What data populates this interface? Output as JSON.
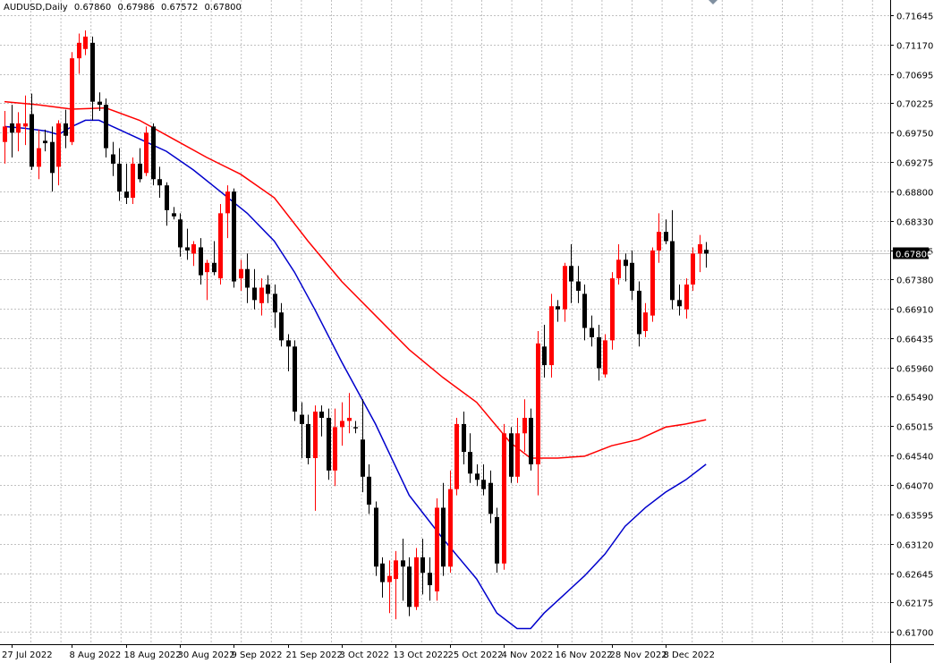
{
  "header": {
    "symbol": "AUDUSD,Daily",
    "open": "0.67860",
    "high": "0.67986",
    "low": "0.67572",
    "close": "0.67800"
  },
  "price_label": "0.67800",
  "colors": {
    "bull": "#ff0000",
    "bear": "#000000",
    "ma_red": "#ff0000",
    "ma_blue": "#0000cc",
    "grid": "#c0c0c0",
    "price_line": "#c8c8c8"
  },
  "chart_data": {
    "type": "candlestick",
    "title": "",
    "xlabel": "",
    "ylabel": "",
    "ylim": [
      0.617,
      0.71645
    ],
    "grid": true,
    "y_ticks": [
      "0.71645",
      "0.71170",
      "0.70695",
      "0.70225",
      "0.69750",
      "0.69275",
      "0.68800",
      "0.68330",
      "0.67855",
      "0.67380",
      "0.66910",
      "0.66435",
      "0.65960",
      "0.65490",
      "0.65015",
      "0.64540",
      "0.64070",
      "0.63595",
      "0.63120",
      "0.62645",
      "0.62175",
      "0.61700"
    ],
    "x_ticks": [
      {
        "label": "27 Jul 2022",
        "index": 1
      },
      {
        "label": "8 Aug 2022",
        "index": 10
      },
      {
        "label": "18 Aug 2022",
        "index": 18
      },
      {
        "label": "30 Aug 2022",
        "index": 26
      },
      {
        "label": "9 Sep 2022",
        "index": 34
      },
      {
        "label": "21 Sep 2022",
        "index": 42
      },
      {
        "label": "3 Oct 2022",
        "index": 50
      },
      {
        "label": "13 Oct 2022",
        "index": 58
      },
      {
        "label": "25 Oct 2022",
        "index": 66
      },
      {
        "label": "4 Nov 2022",
        "index": 74
      },
      {
        "label": "16 Nov 2022",
        "index": 82
      },
      {
        "label": "28 Nov 2022",
        "index": 90
      },
      {
        "label": "8 Dec 2022",
        "index": 98
      }
    ],
    "candles": [
      {
        "o": 0.696,
        "h": 0.701,
        "l": 0.6925,
        "c": 0.6985
      },
      {
        "o": 0.699,
        "h": 0.702,
        "l": 0.6935,
        "c": 0.6975
      },
      {
        "o": 0.6975,
        "h": 0.7008,
        "l": 0.6945,
        "c": 0.699
      },
      {
        "o": 0.6985,
        "h": 0.7035,
        "l": 0.6955,
        "c": 0.699
      },
      {
        "o": 0.7005,
        "h": 0.7038,
        "l": 0.6915,
        "c": 0.692
      },
      {
        "o": 0.692,
        "h": 0.698,
        "l": 0.69,
        "c": 0.695
      },
      {
        "o": 0.6962,
        "h": 0.698,
        "l": 0.6945,
        "c": 0.6958
      },
      {
        "o": 0.696,
        "h": 0.6985,
        "l": 0.688,
        "c": 0.691
      },
      {
        "o": 0.692,
        "h": 0.6995,
        "l": 0.689,
        "c": 0.699
      },
      {
        "o": 0.699,
        "h": 0.7012,
        "l": 0.695,
        "c": 0.697
      },
      {
        "o": 0.696,
        "h": 0.7105,
        "l": 0.6955,
        "c": 0.7095
      },
      {
        "o": 0.7095,
        "h": 0.7135,
        "l": 0.707,
        "c": 0.712
      },
      {
        "o": 0.711,
        "h": 0.714,
        "l": 0.71,
        "c": 0.713
      },
      {
        "o": 0.712,
        "h": 0.713,
        "l": 0.6995,
        "c": 0.7025
      },
      {
        "o": 0.7025,
        "h": 0.704,
        "l": 0.701,
        "c": 0.702
      },
      {
        "o": 0.702,
        "h": 0.703,
        "l": 0.6935,
        "c": 0.695
      },
      {
        "o": 0.694,
        "h": 0.696,
        "l": 0.6905,
        "c": 0.6925
      },
      {
        "o": 0.6925,
        "h": 0.695,
        "l": 0.6865,
        "c": 0.688
      },
      {
        "o": 0.688,
        "h": 0.6925,
        "l": 0.686,
        "c": 0.687
      },
      {
        "o": 0.687,
        "h": 0.6935,
        "l": 0.686,
        "c": 0.6925
      },
      {
        "o": 0.6925,
        "h": 0.695,
        "l": 0.6895,
        "c": 0.69
      },
      {
        "o": 0.691,
        "h": 0.6985,
        "l": 0.6905,
        "c": 0.6975
      },
      {
        "o": 0.6985,
        "h": 0.699,
        "l": 0.689,
        "c": 0.69
      },
      {
        "o": 0.69,
        "h": 0.692,
        "l": 0.687,
        "c": 0.689
      },
      {
        "o": 0.689,
        "h": 0.6895,
        "l": 0.6825,
        "c": 0.685
      },
      {
        "o": 0.6845,
        "h": 0.6855,
        "l": 0.6835,
        "c": 0.684
      },
      {
        "o": 0.6835,
        "h": 0.6845,
        "l": 0.6775,
        "c": 0.679
      },
      {
        "o": 0.679,
        "h": 0.682,
        "l": 0.677,
        "c": 0.6785
      },
      {
        "o": 0.678,
        "h": 0.68,
        "l": 0.676,
        "c": 0.6795
      },
      {
        "o": 0.679,
        "h": 0.6805,
        "l": 0.673,
        "c": 0.6745
      },
      {
        "o": 0.675,
        "h": 0.677,
        "l": 0.6705,
        "c": 0.6765
      },
      {
        "o": 0.6765,
        "h": 0.68,
        "l": 0.6745,
        "c": 0.675
      },
      {
        "o": 0.674,
        "h": 0.686,
        "l": 0.673,
        "c": 0.6845
      },
      {
        "o": 0.6845,
        "h": 0.689,
        "l": 0.6805,
        "c": 0.688
      },
      {
        "o": 0.688,
        "h": 0.6885,
        "l": 0.6725,
        "c": 0.6735
      },
      {
        "o": 0.674,
        "h": 0.677,
        "l": 0.672,
        "c": 0.6755
      },
      {
        "o": 0.6755,
        "h": 0.678,
        "l": 0.67,
        "c": 0.6725
      },
      {
        "o": 0.6725,
        "h": 0.6755,
        "l": 0.669,
        "c": 0.6705
      },
      {
        "o": 0.67,
        "h": 0.674,
        "l": 0.668,
        "c": 0.6725
      },
      {
        "o": 0.673,
        "h": 0.6745,
        "l": 0.67,
        "c": 0.6715
      },
      {
        "o": 0.6715,
        "h": 0.673,
        "l": 0.666,
        "c": 0.6685
      },
      {
        "o": 0.6685,
        "h": 0.67,
        "l": 0.663,
        "c": 0.664
      },
      {
        "o": 0.664,
        "h": 0.665,
        "l": 0.659,
        "c": 0.663
      },
      {
        "o": 0.663,
        "h": 0.664,
        "l": 0.651,
        "c": 0.6525
      },
      {
        "o": 0.652,
        "h": 0.654,
        "l": 0.645,
        "c": 0.6505
      },
      {
        "o": 0.6505,
        "h": 0.652,
        "l": 0.644,
        "c": 0.645
      },
      {
        "o": 0.645,
        "h": 0.6535,
        "l": 0.6365,
        "c": 0.6525
      },
      {
        "o": 0.6525,
        "h": 0.6535,
        "l": 0.6485,
        "c": 0.6515
      },
      {
        "o": 0.6515,
        "h": 0.653,
        "l": 0.6415,
        "c": 0.643
      },
      {
        "o": 0.643,
        "h": 0.653,
        "l": 0.6405,
        "c": 0.65
      },
      {
        "o": 0.65,
        "h": 0.654,
        "l": 0.647,
        "c": 0.651
      },
      {
        "o": 0.651,
        "h": 0.6555,
        "l": 0.649,
        "c": 0.6515
      },
      {
        "o": 0.65,
        "h": 0.651,
        "l": 0.649,
        "c": 0.6498
      },
      {
        "o": 0.648,
        "h": 0.6545,
        "l": 0.6395,
        "c": 0.642
      },
      {
        "o": 0.642,
        "h": 0.644,
        "l": 0.636,
        "c": 0.6375
      },
      {
        "o": 0.637,
        "h": 0.638,
        "l": 0.626,
        "c": 0.6275
      },
      {
        "o": 0.628,
        "h": 0.629,
        "l": 0.6225,
        "c": 0.625
      },
      {
        "o": 0.625,
        "h": 0.6285,
        "l": 0.62,
        "c": 0.626
      },
      {
        "o": 0.6255,
        "h": 0.63,
        "l": 0.619,
        "c": 0.6285
      },
      {
        "o": 0.6285,
        "h": 0.632,
        "l": 0.622,
        "c": 0.6275
      },
      {
        "o": 0.6275,
        "h": 0.629,
        "l": 0.6195,
        "c": 0.621
      },
      {
        "o": 0.621,
        "h": 0.6305,
        "l": 0.6205,
        "c": 0.629
      },
      {
        "o": 0.629,
        "h": 0.632,
        "l": 0.623,
        "c": 0.6265
      },
      {
        "o": 0.6265,
        "h": 0.629,
        "l": 0.622,
        "c": 0.6245
      },
      {
        "o": 0.6235,
        "h": 0.6385,
        "l": 0.622,
        "c": 0.637
      },
      {
        "o": 0.637,
        "h": 0.641,
        "l": 0.626,
        "c": 0.6275
      },
      {
        "o": 0.6275,
        "h": 0.643,
        "l": 0.6265,
        "c": 0.64
      },
      {
        "o": 0.64,
        "h": 0.6515,
        "l": 0.639,
        "c": 0.6505
      },
      {
        "o": 0.6505,
        "h": 0.6525,
        "l": 0.644,
        "c": 0.646
      },
      {
        "o": 0.646,
        "h": 0.649,
        "l": 0.641,
        "c": 0.6425
      },
      {
        "o": 0.6425,
        "h": 0.644,
        "l": 0.6405,
        "c": 0.6415
      },
      {
        "o": 0.6415,
        "h": 0.644,
        "l": 0.639,
        "c": 0.64
      },
      {
        "o": 0.641,
        "h": 0.643,
        "l": 0.6345,
        "c": 0.636
      },
      {
        "o": 0.6355,
        "h": 0.637,
        "l": 0.6265,
        "c": 0.628
      },
      {
        "o": 0.628,
        "h": 0.6505,
        "l": 0.627,
        "c": 0.649
      },
      {
        "o": 0.649,
        "h": 0.65,
        "l": 0.641,
        "c": 0.642
      },
      {
        "o": 0.642,
        "h": 0.6515,
        "l": 0.641,
        "c": 0.649
      },
      {
        "o": 0.649,
        "h": 0.6545,
        "l": 0.646,
        "c": 0.6515
      },
      {
        "o": 0.6515,
        "h": 0.653,
        "l": 0.643,
        "c": 0.644
      },
      {
        "o": 0.644,
        "h": 0.6655,
        "l": 0.639,
        "c": 0.6635
      },
      {
        "o": 0.663,
        "h": 0.6665,
        "l": 0.658,
        "c": 0.66
      },
      {
        "o": 0.66,
        "h": 0.6715,
        "l": 0.658,
        "c": 0.6695
      },
      {
        "o": 0.6695,
        "h": 0.6705,
        "l": 0.667,
        "c": 0.669
      },
      {
        "o": 0.669,
        "h": 0.6765,
        "l": 0.667,
        "c": 0.676
      },
      {
        "o": 0.676,
        "h": 0.6795,
        "l": 0.67,
        "c": 0.6735
      },
      {
        "o": 0.6735,
        "h": 0.676,
        "l": 0.67,
        "c": 0.672
      },
      {
        "o": 0.6715,
        "h": 0.673,
        "l": 0.664,
        "c": 0.666
      },
      {
        "o": 0.666,
        "h": 0.668,
        "l": 0.663,
        "c": 0.6645
      },
      {
        "o": 0.6645,
        "h": 0.6665,
        "l": 0.6575,
        "c": 0.6595
      },
      {
        "o": 0.6585,
        "h": 0.665,
        "l": 0.658,
        "c": 0.664
      },
      {
        "o": 0.664,
        "h": 0.675,
        "l": 0.6625,
        "c": 0.674
      },
      {
        "o": 0.674,
        "h": 0.6795,
        "l": 0.673,
        "c": 0.677
      },
      {
        "o": 0.677,
        "h": 0.678,
        "l": 0.6735,
        "c": 0.676
      },
      {
        "o": 0.6765,
        "h": 0.6785,
        "l": 0.6705,
        "c": 0.672
      },
      {
        "o": 0.672,
        "h": 0.6735,
        "l": 0.663,
        "c": 0.665
      },
      {
        "o": 0.6655,
        "h": 0.67,
        "l": 0.6645,
        "c": 0.6685
      },
      {
        "o": 0.668,
        "h": 0.679,
        "l": 0.667,
        "c": 0.6785
      },
      {
        "o": 0.6785,
        "h": 0.6845,
        "l": 0.6765,
        "c": 0.6815
      },
      {
        "o": 0.6815,
        "h": 0.6835,
        "l": 0.6795,
        "c": 0.68
      },
      {
        "o": 0.68,
        "h": 0.685,
        "l": 0.669,
        "c": 0.6705
      },
      {
        "o": 0.6705,
        "h": 0.673,
        "l": 0.668,
        "c": 0.6695
      },
      {
        "o": 0.669,
        "h": 0.674,
        "l": 0.6675,
        "c": 0.673
      },
      {
        "o": 0.673,
        "h": 0.679,
        "l": 0.672,
        "c": 0.678
      },
      {
        "o": 0.678,
        "h": 0.681,
        "l": 0.675,
        "c": 0.6795
      },
      {
        "o": 0.6786,
        "h": 0.67986,
        "l": 0.67572,
        "c": 0.678
      }
    ],
    "series": [
      {
        "type": "line",
        "color": "#ff0000",
        "points": [
          [
            0,
            0.7025
          ],
          [
            5,
            0.702
          ],
          [
            10,
            0.7013
          ],
          [
            15,
            0.7015
          ],
          [
            20,
            0.6995
          ],
          [
            25,
            0.6965
          ],
          [
            30,
            0.6935
          ],
          [
            35,
            0.6908
          ],
          [
            40,
            0.687
          ],
          [
            45,
            0.68
          ],
          [
            50,
            0.6735
          ],
          [
            55,
            0.668
          ],
          [
            60,
            0.6625
          ],
          [
            65,
            0.658
          ],
          [
            70,
            0.654
          ],
          [
            75,
            0.6475
          ],
          [
            78,
            0.645
          ],
          [
            82,
            0.645
          ],
          [
            86,
            0.6453
          ],
          [
            90,
            0.647
          ],
          [
            94,
            0.648
          ],
          [
            98,
            0.65
          ],
          [
            101,
            0.6505
          ],
          [
            104,
            0.6512
          ]
        ]
      },
      {
        "type": "line",
        "color": "#0000cc",
        "points": [
          [
            0,
            0.6985
          ],
          [
            3,
            0.6982
          ],
          [
            6,
            0.6978
          ],
          [
            8,
            0.6972
          ],
          [
            10,
            0.6985
          ],
          [
            12,
            0.6995
          ],
          [
            14,
            0.6995
          ],
          [
            17,
            0.698
          ],
          [
            20,
            0.6965
          ],
          [
            24,
            0.6945
          ],
          [
            28,
            0.6915
          ],
          [
            32,
            0.688
          ],
          [
            36,
            0.6845
          ],
          [
            40,
            0.68
          ],
          [
            43,
            0.675
          ],
          [
            46,
            0.669
          ],
          [
            50,
            0.6605
          ],
          [
            55,
            0.6505
          ],
          [
            60,
            0.639
          ],
          [
            65,
            0.632
          ],
          [
            70,
            0.6255
          ],
          [
            73,
            0.62
          ],
          [
            76,
            0.6175
          ],
          [
            78,
            0.6175
          ],
          [
            80,
            0.62
          ],
          [
            83,
            0.623
          ],
          [
            86,
            0.626
          ],
          [
            89,
            0.6295
          ],
          [
            92,
            0.634
          ],
          [
            95,
            0.637
          ],
          [
            98,
            0.6395
          ],
          [
            101,
            0.6415
          ],
          [
            104,
            0.644
          ]
        ]
      }
    ]
  }
}
